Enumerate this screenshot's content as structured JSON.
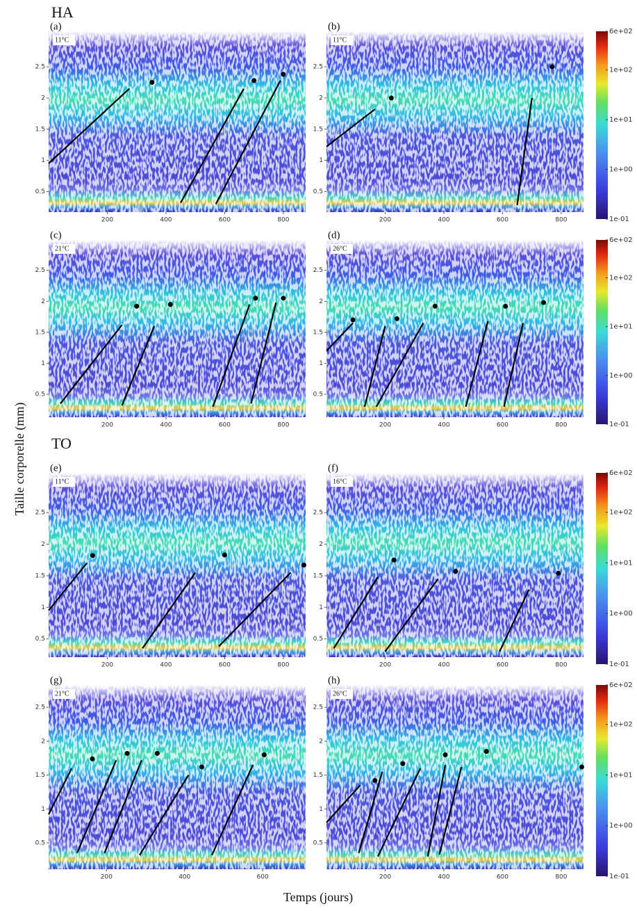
{
  "groups": [
    {
      "title": "HA"
    },
    {
      "title": "TO"
    }
  ],
  "y_label": "Taille corporelle (mm)",
  "x_label": "Temps (jours)",
  "colorbar": {
    "lim": [
      0.1,
      600
    ],
    "log": true,
    "ticks": [
      {
        "value": 600,
        "label": "6e+02"
      },
      {
        "value": 100,
        "label": "1e+02"
      },
      {
        "value": 10,
        "label": "1e+01"
      },
      {
        "value": 1,
        "label": "1e+00"
      },
      {
        "value": 0.1,
        "label": "1e-01"
      }
    ]
  },
  "chart_data": [
    {
      "type": "heatmap",
      "label": "(a)",
      "annotation": "11°C",
      "xlim": [
        0,
        876
      ],
      "xticks": [
        200,
        400,
        600,
        800
      ],
      "ylim": [
        0.17,
        3.07
      ],
      "yticks": [
        0.5,
        1.0,
        1.5,
        2.0,
        2.5
      ],
      "points": {
        "x": [
          352,
          700,
          800
        ],
        "y": [
          2.25,
          2.28,
          2.38
        ]
      },
      "lines": [
        {
          "x": [
            0,
            275
          ],
          "y": [
            0.95,
            2.15
          ]
        },
        {
          "x": [
            450,
            665
          ],
          "y": [
            0.32,
            2.15
          ]
        },
        {
          "x": [
            570,
            790
          ],
          "y": [
            0.3,
            2.28
          ]
        }
      ]
    },
    {
      "type": "heatmap",
      "label": "(b)",
      "annotation": "11°C",
      "xlim": [
        0,
        876
      ],
      "xticks": [
        200,
        400,
        600,
        800
      ],
      "ylim": [
        0.17,
        3.07
      ],
      "yticks": [
        0.5,
        1.0,
        1.5,
        2.0,
        2.5
      ],
      "points": {
        "x": [
          221,
          769
        ],
        "y": [
          2.0,
          2.5
        ]
      },
      "lines": [
        {
          "x": [
            0,
            165
          ],
          "y": [
            1.22,
            1.82
          ]
        },
        {
          "x": [
            650,
            700
          ],
          "y": [
            0.28,
            2.0
          ]
        }
      ]
    },
    {
      "type": "heatmap",
      "label": "(c)",
      "annotation": "21°C",
      "xlim": [
        0,
        876
      ],
      "xticks": [
        200,
        400,
        600,
        800
      ],
      "ylim": [
        0.13,
        2.99
      ],
      "yticks": [
        0.5,
        1.0,
        1.5,
        2.0,
        2.5
      ],
      "points": {
        "x": [
          300,
          415,
          705,
          800
        ],
        "y": [
          1.92,
          1.95,
          2.05,
          2.05
        ]
      },
      "lines": [
        {
          "x": [
            40,
            250
          ],
          "y": [
            0.35,
            1.62
          ]
        },
        {
          "x": [
            250,
            360
          ],
          "y": [
            0.32,
            1.6
          ]
        },
        {
          "x": [
            560,
            685
          ],
          "y": [
            0.3,
            1.95
          ]
        },
        {
          "x": [
            690,
            775
          ],
          "y": [
            0.35,
            1.98
          ]
        }
      ]
    },
    {
      "type": "heatmap",
      "label": "(d)",
      "annotation": "26°C",
      "xlim": [
        0,
        876
      ],
      "xticks": [
        200,
        400,
        600,
        800
      ],
      "ylim": [
        0.13,
        2.99
      ],
      "yticks": [
        0.5,
        1.0,
        1.5,
        2.0,
        2.5
      ],
      "points": {
        "x": [
          90,
          240,
          370,
          610,
          740
        ],
        "y": [
          1.7,
          1.72,
          1.92,
          1.92,
          1.98
        ]
      },
      "lines": [
        {
          "x": [
            0,
            90
          ],
          "y": [
            1.2,
            1.65
          ]
        },
        {
          "x": [
            130,
            200
          ],
          "y": [
            0.3,
            1.6
          ]
        },
        {
          "x": [
            170,
            330
          ],
          "y": [
            0.3,
            1.65
          ]
        },
        {
          "x": [
            475,
            550
          ],
          "y": [
            0.3,
            1.68
          ]
        },
        {
          "x": [
            605,
            670
          ],
          "y": [
            0.3,
            1.65
          ]
        }
      ]
    },
    {
      "type": "heatmap",
      "label": "(e)",
      "annotation": "11°C",
      "xlim": [
        0,
        876
      ],
      "xticks": [
        200,
        400,
        600,
        800
      ],
      "ylim": [
        0.21,
        3.13
      ],
      "yticks": [
        0.5,
        1.0,
        1.5,
        2.0,
        2.5
      ],
      "points": {
        "x": [
          150,
          600,
          870
        ],
        "y": [
          1.82,
          1.83,
          1.67
        ]
      },
      "lines": [
        {
          "x": [
            0,
            130
          ],
          "y": [
            0.95,
            1.7
          ]
        },
        {
          "x": [
            320,
            500
          ],
          "y": [
            0.35,
            1.55
          ]
        },
        {
          "x": [
            580,
            825
          ],
          "y": [
            0.38,
            1.55
          ]
        }
      ]
    },
    {
      "type": "heatmap",
      "label": "(f)",
      "annotation": "16°C",
      "xlim": [
        0,
        876
      ],
      "xticks": [
        200,
        400,
        600,
        800
      ],
      "ylim": [
        0.21,
        3.13
      ],
      "yticks": [
        0.5,
        1.0,
        1.5,
        2.0,
        2.5
      ],
      "points": {
        "x": [
          230,
          440,
          790
        ],
        "y": [
          1.75,
          1.57,
          1.54
        ]
      },
      "lines": [
        {
          "x": [
            25,
            175
          ],
          "y": [
            0.35,
            1.48
          ]
        },
        {
          "x": [
            200,
            380
          ],
          "y": [
            0.3,
            1.45
          ]
        },
        {
          "x": [
            590,
            690
          ],
          "y": [
            0.3,
            1.28
          ]
        }
      ]
    },
    {
      "type": "heatmap",
      "label": "(g)",
      "annotation": "21°C",
      "xlim": [
        52,
        710
      ],
      "xticks": [
        200,
        400,
        600
      ],
      "ylim": [
        0.11,
        2.83
      ],
      "yticks": [
        0.5,
        1.0,
        1.5,
        2.0,
        2.5
      ],
      "points": {
        "x": [
          164,
          253,
          330,
          444,
          604
        ],
        "y": [
          1.74,
          1.82,
          1.82,
          1.62,
          1.8
        ]
      },
      "lines": [
        {
          "x": [
            52,
            111
          ],
          "y": [
            0.92,
            1.6
          ]
        },
        {
          "x": [
            125,
            225
          ],
          "y": [
            0.35,
            1.72
          ]
        },
        {
          "x": [
            195,
            290
          ],
          "y": [
            0.35,
            1.72
          ]
        },
        {
          "x": [
            285,
            410
          ],
          "y": [
            0.32,
            1.5
          ]
        },
        {
          "x": [
            470,
            575
          ],
          "y": [
            0.32,
            1.65
          ]
        }
      ]
    },
    {
      "type": "heatmap",
      "label": "(h)",
      "annotation": "26°C",
      "xlim": [
        0,
        876
      ],
      "xticks": [
        200,
        400,
        600,
        800
      ],
      "ylim": [
        0.11,
        2.83
      ],
      "yticks": [
        0.5,
        1.0,
        1.5,
        2.0,
        2.5
      ],
      "points": {
        "x": [
          165,
          260,
          405,
          545,
          870
        ],
        "y": [
          1.42,
          1.67,
          1.8,
          1.85,
          1.62
        ]
      },
      "lines": [
        {
          "x": [
            0,
            115
          ],
          "y": [
            0.8,
            1.35
          ]
        },
        {
          "x": [
            110,
            190
          ],
          "y": [
            0.35,
            1.55
          ]
        },
        {
          "x": [
            175,
            320
          ],
          "y": [
            0.3,
            1.6
          ]
        },
        {
          "x": [
            345,
            405
          ],
          "y": [
            0.3,
            1.65
          ]
        },
        {
          "x": [
            385,
            460
          ],
          "y": [
            0.33,
            1.62
          ]
        }
      ]
    }
  ]
}
